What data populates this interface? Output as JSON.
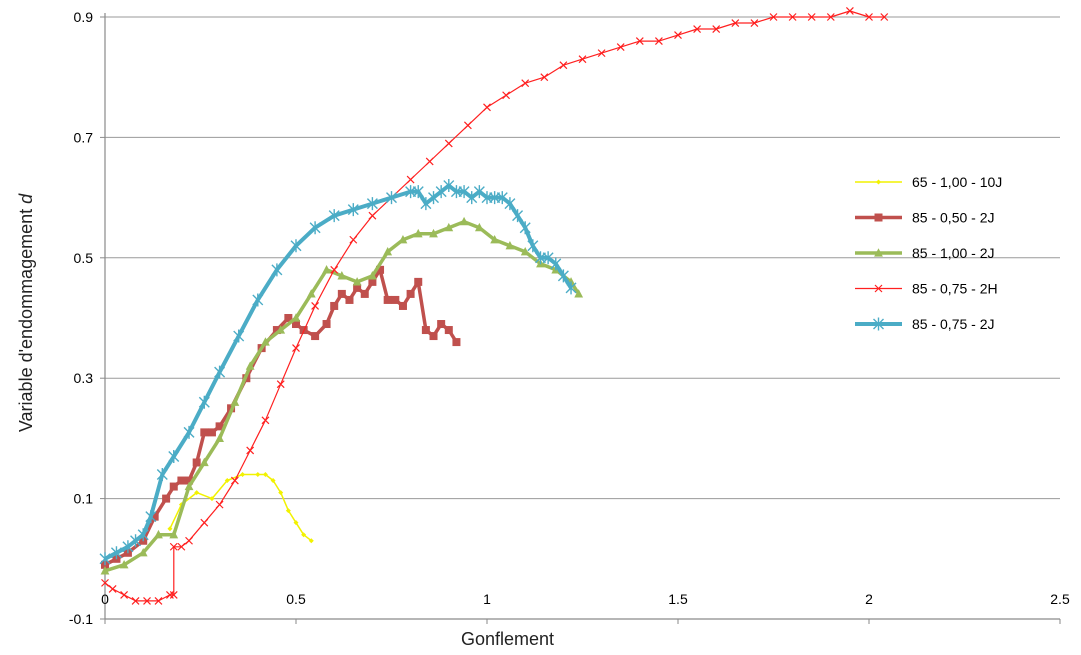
{
  "chart_data": {
    "type": "line",
    "xlabel": "Gonflement",
    "ylabel_prefix": "Variable d'endommagement ",
    "ylabel_var": "d",
    "xlim": [
      0,
      2.5
    ],
    "ylim": [
      -0.1,
      0.9
    ],
    "x_ticks": [
      "0",
      "0.5",
      "1",
      "1.5",
      "2",
      "2.5"
    ],
    "y_ticks": [
      "0.9",
      "0.7",
      "0.5",
      "0.3",
      "0.1",
      "-0.1"
    ],
    "grid": true,
    "legend_position": "right",
    "series": [
      {
        "name": "65 - 1,00 - 10J",
        "color": "#f2f200",
        "marker": "diamond",
        "x": [
          0.17,
          0.2,
          0.24,
          0.28,
          0.32,
          0.36,
          0.4,
          0.42,
          0.44,
          0.46,
          0.48,
          0.5,
          0.52,
          0.54
        ],
        "y": [
          0.05,
          0.09,
          0.11,
          0.1,
          0.13,
          0.14,
          0.14,
          0.14,
          0.13,
          0.11,
          0.08,
          0.06,
          0.04,
          0.03
        ]
      },
      {
        "name": "85 - 0,50 - 2J",
        "color": "#c0504d",
        "marker": "square",
        "x": [
          0,
          0.03,
          0.06,
          0.1,
          0.13,
          0.16,
          0.18,
          0.2,
          0.22,
          0.24,
          0.26,
          0.28,
          0.3,
          0.33,
          0.37,
          0.41,
          0.45,
          0.48,
          0.5,
          0.52,
          0.55,
          0.58,
          0.6,
          0.62,
          0.64,
          0.66,
          0.68,
          0.7,
          0.72,
          0.74,
          0.76,
          0.78,
          0.8,
          0.82,
          0.84,
          0.86,
          0.88,
          0.9,
          0.92
        ],
        "y": [
          -0.01,
          0.0,
          0.01,
          0.03,
          0.07,
          0.1,
          0.12,
          0.13,
          0.13,
          0.16,
          0.21,
          0.21,
          0.22,
          0.25,
          0.3,
          0.35,
          0.38,
          0.4,
          0.39,
          0.38,
          0.37,
          0.39,
          0.42,
          0.44,
          0.43,
          0.45,
          0.44,
          0.46,
          0.48,
          0.43,
          0.43,
          0.42,
          0.44,
          0.46,
          0.38,
          0.37,
          0.39,
          0.38,
          0.36
        ]
      },
      {
        "name": "85 - 1,00 - 2J",
        "color": "#9bbb59",
        "marker": "triangle",
        "x": [
          0,
          0.05,
          0.1,
          0.14,
          0.18,
          0.22,
          0.26,
          0.3,
          0.34,
          0.38,
          0.42,
          0.46,
          0.5,
          0.54,
          0.58,
          0.62,
          0.66,
          0.7,
          0.74,
          0.78,
          0.82,
          0.86,
          0.9,
          0.94,
          0.98,
          1.02,
          1.06,
          1.1,
          1.14,
          1.18,
          1.22,
          1.24
        ],
        "y": [
          -0.02,
          -0.01,
          0.01,
          0.04,
          0.04,
          0.12,
          0.16,
          0.2,
          0.26,
          0.32,
          0.36,
          0.38,
          0.4,
          0.44,
          0.48,
          0.47,
          0.46,
          0.47,
          0.51,
          0.53,
          0.54,
          0.54,
          0.55,
          0.56,
          0.55,
          0.53,
          0.52,
          0.51,
          0.49,
          0.48,
          0.46,
          0.44
        ]
      },
      {
        "name": "85 - 0,75 - 2H",
        "color": "#ff2020",
        "marker": "x",
        "x": [
          0,
          0.02,
          0.05,
          0.08,
          0.11,
          0.14,
          0.17,
          0.18,
          0.18,
          0.2,
          0.22,
          0.26,
          0.3,
          0.34,
          0.38,
          0.42,
          0.46,
          0.5,
          0.55,
          0.6,
          0.65,
          0.7,
          0.75,
          0.8,
          0.85,
          0.9,
          0.95,
          1.0,
          1.05,
          1.1,
          1.15,
          1.2,
          1.25,
          1.3,
          1.35,
          1.4,
          1.45,
          1.5,
          1.55,
          1.6,
          1.65,
          1.7,
          1.75,
          1.8,
          1.85,
          1.9,
          1.95,
          2.0,
          2.04
        ],
        "y": [
          -0.04,
          -0.05,
          -0.06,
          -0.07,
          -0.07,
          -0.07,
          -0.06,
          -0.06,
          0.02,
          0.02,
          0.03,
          0.06,
          0.09,
          0.13,
          0.18,
          0.23,
          0.29,
          0.35,
          0.42,
          0.48,
          0.53,
          0.57,
          0.6,
          0.63,
          0.66,
          0.69,
          0.72,
          0.75,
          0.77,
          0.79,
          0.8,
          0.82,
          0.83,
          0.84,
          0.85,
          0.86,
          0.86,
          0.87,
          0.88,
          0.88,
          0.89,
          0.89,
          0.9,
          0.9,
          0.9,
          0.9,
          0.91,
          0.9,
          0.9
        ]
      },
      {
        "name": "85 - 0,75 - 2J",
        "color": "#4bacc6",
        "marker": "star",
        "x": [
          0,
          0.03,
          0.06,
          0.08,
          0.1,
          0.12,
          0.15,
          0.18,
          0.22,
          0.26,
          0.3,
          0.35,
          0.4,
          0.45,
          0.5,
          0.55,
          0.6,
          0.65,
          0.7,
          0.75,
          0.8,
          0.82,
          0.84,
          0.86,
          0.88,
          0.9,
          0.92,
          0.94,
          0.96,
          0.98,
          1.0,
          1.02,
          1.04,
          1.06,
          1.08,
          1.1,
          1.12,
          1.14,
          1.16,
          1.18,
          1.2,
          1.22
        ],
        "y": [
          0.0,
          0.01,
          0.02,
          0.03,
          0.04,
          0.07,
          0.14,
          0.17,
          0.21,
          0.26,
          0.31,
          0.37,
          0.43,
          0.48,
          0.52,
          0.55,
          0.57,
          0.58,
          0.59,
          0.6,
          0.61,
          0.61,
          0.59,
          0.6,
          0.61,
          0.62,
          0.61,
          0.61,
          0.6,
          0.61,
          0.6,
          0.6,
          0.6,
          0.59,
          0.57,
          0.55,
          0.52,
          0.5,
          0.5,
          0.49,
          0.47,
          0.45
        ]
      }
    ]
  }
}
